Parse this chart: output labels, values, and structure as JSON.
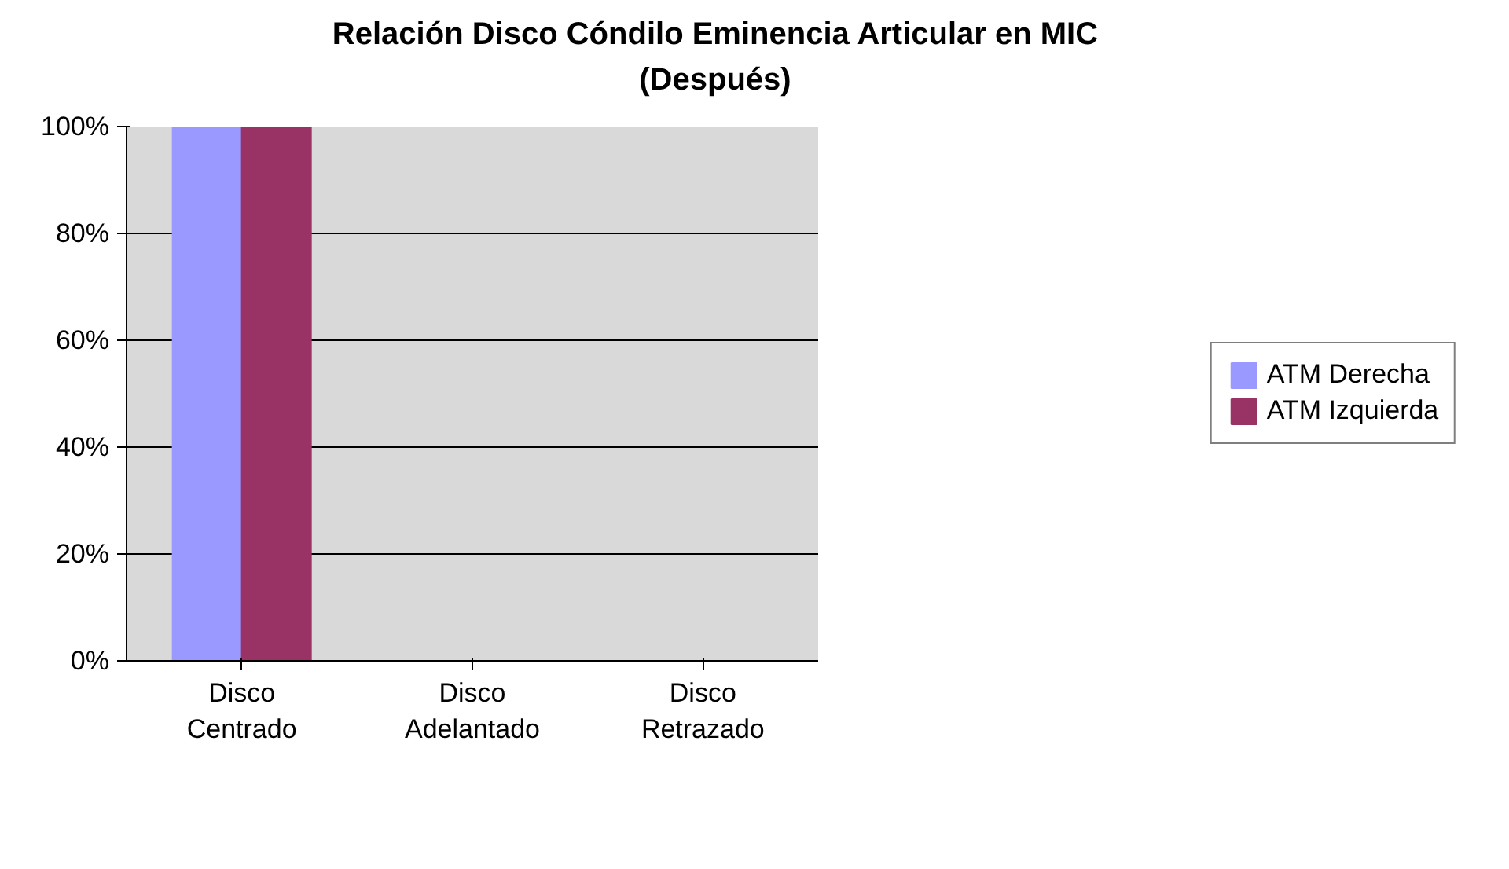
{
  "chart_data": {
    "type": "bar",
    "title": "Relación Disco Cóndilo Eminencia Articular en     MIC\n(Después)",
    "categories": [
      "Disco\nCentrado",
      "Disco\nAdelantado",
      "Disco\nRetrazado"
    ],
    "series": [
      {
        "name": "ATM Derecha",
        "color": "#9999ff",
        "values": [
          100,
          0,
          0
        ]
      },
      {
        "name": "ATM Izquierda",
        "color": "#993366",
        "values": [
          100,
          0,
          0
        ]
      }
    ],
    "ylim": [
      0,
      100
    ],
    "yticks": [
      {
        "value": 0,
        "label": "0%"
      },
      {
        "value": 20,
        "label": "20%"
      },
      {
        "value": 40,
        "label": "40%"
      },
      {
        "value": 60,
        "label": "60%"
      },
      {
        "value": 80,
        "label": "80%"
      },
      {
        "value": 100,
        "label": "100%"
      }
    ],
    "grid": "y",
    "legend": "right"
  }
}
